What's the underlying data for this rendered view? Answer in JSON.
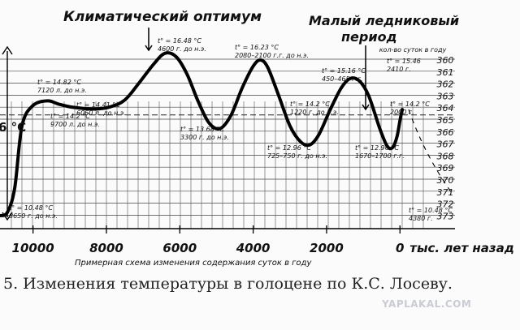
{
  "chart_data": {
    "type": "line",
    "title_left": "Климатический оптимум",
    "title_right": "Малый ледниковый период",
    "xlabel": "тыс. лет назад",
    "axis_caption": "Примерная схема изменения содержания суток в году",
    "y_temp_label": "6 °С",
    "x_ticks": [
      {
        "value": 10000,
        "label": "10000"
      },
      {
        "value": 8000,
        "label": "8000"
      },
      {
        "value": 6000,
        "label": "6000"
      },
      {
        "value": 4000,
        "label": "4000"
      },
      {
        "value": 2000,
        "label": "2000"
      },
      {
        "value": 0,
        "label": "0"
      }
    ],
    "xlim": [
      10900,
      -1500
    ],
    "ylim": [
      10.0,
      16.8
    ],
    "reference_temp": 14.2,
    "series": [
      {
        "points": [
          [
            10900,
            10.48
          ],
          [
            10700,
            10.6
          ],
          [
            10500,
            11.5
          ],
          [
            10300,
            13.8
          ],
          [
            10000,
            14.55
          ],
          [
            9600,
            14.72
          ],
          [
            9300,
            14.6
          ],
          [
            8900,
            14.48
          ],
          [
            8300,
            14.42
          ],
          [
            7900,
            14.5
          ],
          [
            7500,
            14.75
          ],
          [
            7100,
            15.4
          ],
          [
            6700,
            16.1
          ],
          [
            6400,
            16.48
          ],
          [
            6100,
            16.35
          ],
          [
            5800,
            15.7
          ],
          [
            5500,
            14.7
          ],
          [
            5200,
            13.9
          ],
          [
            4900,
            13.7
          ],
          [
            4600,
            14.2
          ],
          [
            4300,
            15.2
          ],
          [
            4000,
            16.0
          ],
          [
            3800,
            16.23
          ],
          [
            3600,
            15.95
          ],
          [
            3300,
            14.9
          ],
          [
            3000,
            13.8
          ],
          [
            2700,
            13.2
          ],
          [
            2450,
            13.1
          ],
          [
            2200,
            13.5
          ],
          [
            1900,
            14.4
          ],
          [
            1600,
            15.2
          ],
          [
            1350,
            15.55
          ],
          [
            1100,
            15.45
          ],
          [
            850,
            14.9
          ],
          [
            550,
            13.7
          ],
          [
            350,
            13.05
          ],
          [
            200,
            13.0
          ],
          [
            80,
            13.4
          ],
          [
            0,
            14.0
          ],
          [
            -60,
            14.4
          ]
        ]
      }
    ],
    "day_scale": {
      "title": "кол-во суток в году",
      "values": [
        "360",
        "361",
        "362",
        "363",
        "364",
        "365",
        "366",
        "367",
        "368",
        "369",
        "370",
        "371",
        "372",
        "373"
      ]
    },
    "annotations": [
      {
        "temp": "t° = 14.82 °С",
        "date": "7120 л. до н.э."
      },
      {
        "temp": "t° = 14.2 °С",
        "date": "9700 л. до н.э."
      },
      {
        "temp": "t° = 14.41 °С",
        "date": "6060 л. до н.э."
      },
      {
        "temp": "t° = 16.48 °С",
        "date": "4600 г. до н.э."
      },
      {
        "temp": "t° = 13.68 °С",
        "date": "3300 г. до н.э."
      },
      {
        "temp": "t° = 16.23 °С",
        "date": "2080–2100 г.г. до н.э."
      },
      {
        "temp": "t° = 14.2 °С",
        "date": "1220 г. до н.э."
      },
      {
        "temp": "t° = 12.96 °С",
        "date": "725–750 г. до н.э."
      },
      {
        "temp": "t° = 15.16 °С",
        "date": "450–465 г.г."
      },
      {
        "temp": "t° = 12.96 °С",
        "date": "1670–1700 г.г."
      },
      {
        "temp": "t° = 15.46",
        "date": "2410 г."
      },
      {
        "temp": "t° = 14.2 °С",
        "date": "2000 г."
      },
      {
        "temp": "t° = 10.48 °С",
        "date": "8650 г. до н.э."
      },
      {
        "temp": "t° = 10.48 °С",
        "date": "4380 г."
      }
    ]
  },
  "caption": "5. Изменения температуры в голоцене по К.С. Лосеву.",
  "watermark": "YAPLAKAL.COM"
}
